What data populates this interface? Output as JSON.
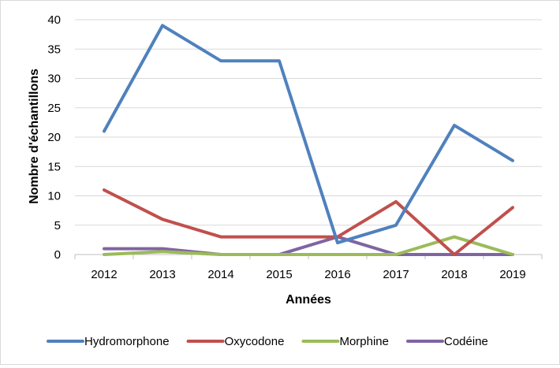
{
  "chart_data": {
    "type": "line",
    "title": "",
    "xlabel": "Années",
    "ylabel": "Nombre d'échantillons",
    "categories": [
      "2012",
      "2013",
      "2014",
      "2015",
      "2016",
      "2017",
      "2018",
      "2019"
    ],
    "ylim": [
      0,
      40
    ],
    "yticks": [
      0,
      5,
      10,
      15,
      20,
      25,
      30,
      35,
      40
    ],
    "grid": true,
    "legend_position": "bottom",
    "series": [
      {
        "name": "Hydromorphone",
        "color": "#4f81bd",
        "values": [
          21,
          39,
          33,
          33,
          2,
          5,
          22,
          16
        ]
      },
      {
        "name": "Oxycodone",
        "color": "#c0504d",
        "values": [
          11,
          6,
          3,
          3,
          3,
          9,
          0,
          8
        ]
      },
      {
        "name": "Morphine",
        "color": "#9bbb59",
        "values": [
          0,
          0.5,
          0,
          0,
          0,
          0,
          3,
          0
        ]
      },
      {
        "name": "Codéine",
        "color": "#8064a2",
        "values": [
          1,
          1,
          0,
          0,
          3,
          0,
          0,
          0
        ]
      }
    ]
  }
}
